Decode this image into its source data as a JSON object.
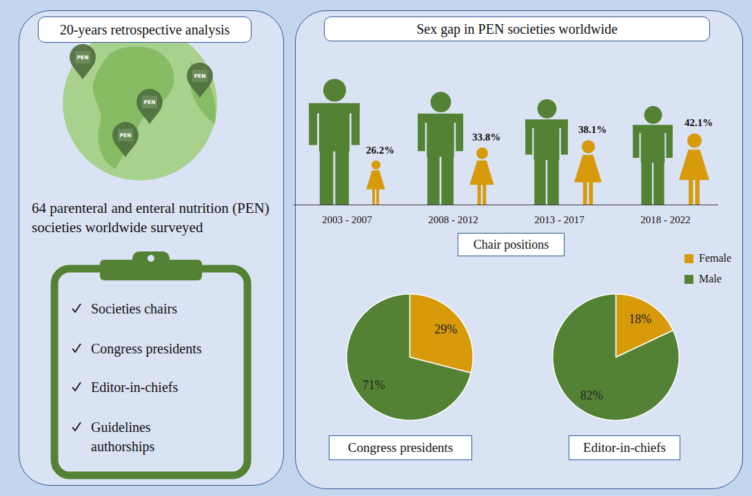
{
  "left_panel": {
    "title": "20-years retrospective analysis",
    "pins": [
      "PEN",
      "PEN",
      "PEN",
      "PEN"
    ],
    "description": "64 parenteral and enteral nutrition (PEN) societies worldwide surveyed",
    "checklist": [
      "Societies chairs",
      "Congress presidents",
      "Editor-in-chiefs",
      "Guidelines authorships"
    ]
  },
  "right_panel": {
    "title": "Sex gap in PEN societies worldwide"
  },
  "chart_data": [
    {
      "type": "pictogram",
      "title": "Chair positions",
      "categories": [
        "2003 - 2007",
        "2008 - 2012",
        "2013 - 2017",
        "2018 - 2022"
      ],
      "series": [
        {
          "name": "Female",
          "color": "#d69a0b",
          "values": [
            26.2,
            33.8,
            38.1,
            42.1
          ],
          "value_labels": [
            "26.2%",
            "33.8%",
            "38.1%",
            "42.1%"
          ],
          "data_labels": true
        },
        {
          "name": "Male",
          "color": "#548235",
          "values": [
            73.8,
            66.2,
            61.9,
            57.9
          ],
          "data_labels": false
        }
      ],
      "tick_labels": "x",
      "legend": "right"
    },
    {
      "type": "pie",
      "title": "Congress presidents",
      "categories": [
        "Female",
        "Male"
      ],
      "values": [
        29,
        71
      ],
      "value_labels": [
        "29%",
        "71%"
      ],
      "colors": [
        "#d69a0b",
        "#548235"
      ],
      "data_labels": true
    },
    {
      "type": "pie",
      "title": "Editor-in-chiefs",
      "categories": [
        "Female",
        "Male"
      ],
      "values": [
        18,
        82
      ],
      "value_labels": [
        "18%",
        "82%"
      ],
      "colors": [
        "#d69a0b",
        "#548235"
      ],
      "data_labels": true
    }
  ]
}
